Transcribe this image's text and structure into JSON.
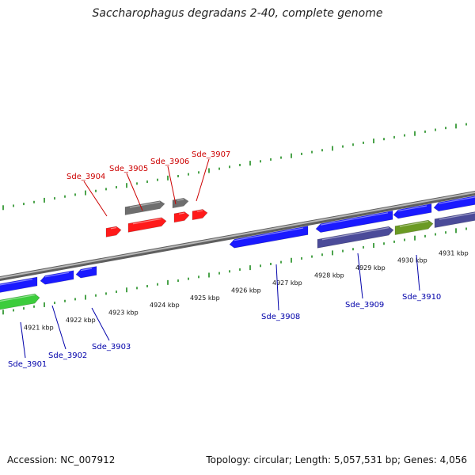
{
  "title": "Saccharophagus degradans 2-40, complete genome",
  "accession": "Accession: NC_007912",
  "summary": "Topology: circular; Length: 5,057,531 bp; Genes: 4,056",
  "colors": {
    "backbone": "#8a8a8a",
    "gc_ticks": "#1e8c1e",
    "label_forward": "#cc0000",
    "label_reverse": "#0000aa",
    "gene_red": "#ff1a1a",
    "gene_gray": "#6e6e6e",
    "gene_blue": "#1a1aff",
    "gene_slate": "#4b4b99",
    "gene_olive": "#6b9a24",
    "gene_green": "#3ccc3c"
  },
  "ticks": [
    {
      "label": "4921 kbp"
    },
    {
      "label": "4922 kbp"
    },
    {
      "label": "4923 kbp"
    },
    {
      "label": "4924 kbp"
    },
    {
      "label": "4925 kbp"
    },
    {
      "label": "4926 kbp"
    },
    {
      "label": "4927 kbp"
    },
    {
      "label": "4928 kbp"
    },
    {
      "label": "4929 kbp"
    },
    {
      "label": "4930 kbp"
    },
    {
      "label": "4931 kbp"
    }
  ],
  "gene_labels": [
    {
      "text": "Sde_3901",
      "strand": "reverse"
    },
    {
      "text": "Sde_3902",
      "strand": "reverse"
    },
    {
      "text": "Sde_3903",
      "strand": "reverse"
    },
    {
      "text": "Sde_3904",
      "strand": "forward"
    },
    {
      "text": "Sde_3905",
      "strand": "forward"
    },
    {
      "text": "Sde_3906",
      "strand": "forward"
    },
    {
      "text": "Sde_3907",
      "strand": "forward"
    },
    {
      "text": "Sde_3908",
      "strand": "reverse"
    },
    {
      "text": "Sde_3909",
      "strand": "reverse"
    },
    {
      "text": "Sde_3910",
      "strand": "reverse"
    }
  ]
}
